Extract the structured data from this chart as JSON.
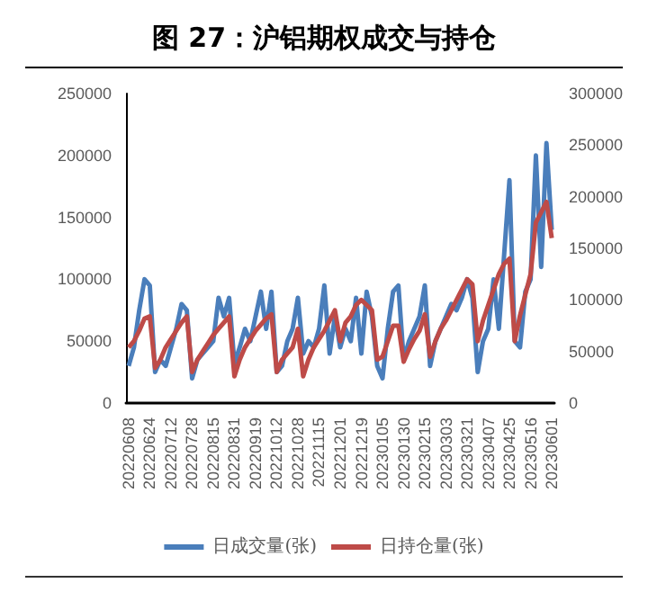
{
  "chart_data": {
    "type": "line",
    "title": "图 27：沪铝期权成交与持仓",
    "categories": [
      "20220608",
      null,
      null,
      null,
      "20220624",
      null,
      null,
      null,
      "20220712",
      null,
      null,
      null,
      "20220728",
      null,
      null,
      null,
      "20220815",
      null,
      null,
      null,
      "20220831",
      null,
      null,
      null,
      "20220919",
      null,
      null,
      null,
      "20221012",
      null,
      null,
      null,
      "20221028",
      null,
      null,
      null,
      "20221115",
      null,
      null,
      null,
      "20221201",
      null,
      null,
      null,
      "20221219",
      null,
      null,
      null,
      "20230105",
      null,
      null,
      null,
      "20230130",
      null,
      null,
      null,
      "20230215",
      null,
      null,
      null,
      "20230303",
      null,
      null,
      null,
      "20230321",
      null,
      null,
      null,
      "20230407",
      null,
      null,
      null,
      "20230425",
      null,
      null,
      null,
      "20230516",
      null,
      null,
      null,
      "20230601"
    ],
    "series": [
      {
        "name": "日成交量(张)",
        "color": "#4a7ebb",
        "values": [
          30000,
          45000,
          75000,
          100000,
          95000,
          25000,
          35000,
          30000,
          45000,
          60000,
          80000,
          75000,
          20000,
          35000,
          40000,
          45000,
          50000,
          85000,
          70000,
          85000,
          32000,
          45000,
          60000,
          50000,
          70000,
          90000,
          60000,
          90000,
          25000,
          30000,
          50000,
          60000,
          85000,
          40000,
          50000,
          45000,
          60000,
          95000,
          40000,
          70000,
          45000,
          60000,
          50000,
          85000,
          40000,
          90000,
          70000,
          30000,
          20000,
          60000,
          90000,
          95000,
          35000,
          50000,
          60000,
          70000,
          95000,
          30000,
          50000,
          60000,
          70000,
          80000,
          75000,
          85000,
          100000,
          85000,
          25000,
          50000,
          60000,
          100000,
          60000,
          120000,
          180000,
          50000,
          45000,
          90000,
          100000,
          200000,
          110000,
          210000,
          140000
        ]
      },
      {
        "name": "日持仓量(张)",
        "color": "#be4b48",
        "axis": "y2",
        "values": [
          54000,
          60000,
          70000,
          82000,
          84000,
          34000,
          42000,
          54000,
          62000,
          70000,
          78000,
          84000,
          30000,
          42000,
          50000,
          58000,
          66000,
          72000,
          78000,
          84000,
          26000,
          42000,
          54000,
          62000,
          70000,
          76000,
          82000,
          86000,
          30000,
          42000,
          48000,
          54000,
          72000,
          26000,
          42000,
          54000,
          62000,
          70000,
          80000,
          90000,
          60000,
          78000,
          84000,
          95000,
          100000,
          95000,
          90000,
          42000,
          45000,
          60000,
          75000,
          75000,
          40000,
          52000,
          62000,
          70000,
          86000,
          45000,
          60000,
          72000,
          80000,
          90000,
          100000,
          110000,
          120000,
          115000,
          60000,
          80000,
          95000,
          110000,
          125000,
          135000,
          140000,
          60000,
          85000,
          105000,
          125000,
          175000,
          185000,
          195000,
          160000
        ]
      }
    ],
    "ylim": [
      0,
      250000
    ],
    "yticks": [
      0,
      50000,
      100000,
      150000,
      200000,
      250000
    ],
    "y2lim": [
      0,
      300000
    ],
    "y2ticks": [
      0,
      50000,
      100000,
      150000,
      200000,
      250000,
      300000
    ],
    "legend": "bottom",
    "grid": false,
    "marker": "none",
    "line_style": "solid"
  }
}
